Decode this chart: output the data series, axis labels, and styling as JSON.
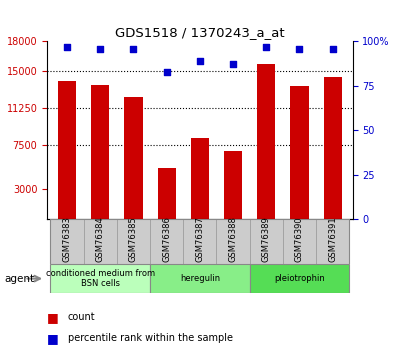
{
  "title": "GDS1518 / 1370243_a_at",
  "samples": [
    "GSM76383",
    "GSM76384",
    "GSM76385",
    "GSM76386",
    "GSM76387",
    "GSM76388",
    "GSM76389",
    "GSM76390",
    "GSM76391"
  ],
  "counts": [
    14000,
    13600,
    12400,
    5200,
    8200,
    6900,
    15700,
    13500,
    14400
  ],
  "percentiles": [
    97,
    96,
    96,
    83,
    89,
    87,
    97,
    96,
    96
  ],
  "ylim_left": [
    0,
    18000
  ],
  "ylim_right": [
    0,
    100
  ],
  "yticks_left": [
    3000,
    7500,
    11250,
    15000,
    18000
  ],
  "ytick_labels_left": [
    "3000",
    "7500",
    "11250",
    "15000",
    "18000"
  ],
  "yticks_right": [
    0,
    25,
    50,
    75,
    100
  ],
  "ytick_labels_right": [
    "0",
    "25",
    "50",
    "75",
    "100%"
  ],
  "bar_color": "#cc0000",
  "dot_color": "#0000cc",
  "groups": [
    {
      "label": "conditioned medium from\nBSN cells",
      "start": 0,
      "end": 3,
      "color": "#bbffbb"
    },
    {
      "label": "heregulin",
      "start": 3,
      "end": 6,
      "color": "#88ee88"
    },
    {
      "label": "pleiotrophin",
      "start": 6,
      "end": 9,
      "color": "#55dd55"
    }
  ],
  "agent_label": "agent",
  "legend_count_label": "count",
  "legend_pct_label": "percentile rank within the sample",
  "bg_color": "#ffffff",
  "plot_bg": "#ffffff",
  "tick_area_bg": "#cccccc"
}
